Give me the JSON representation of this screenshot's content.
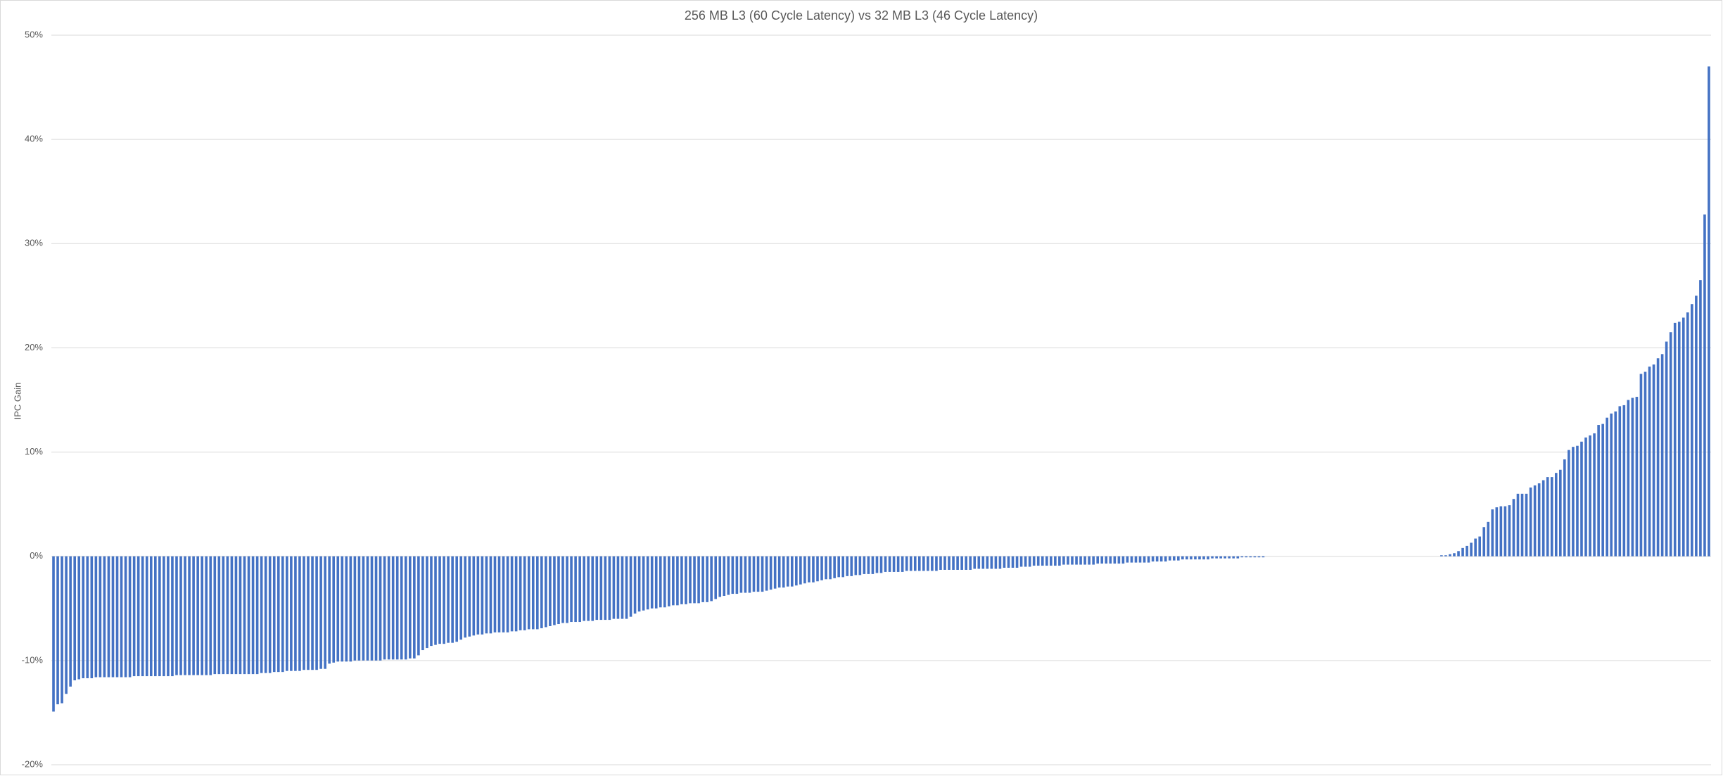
{
  "chart_data": {
    "type": "bar",
    "title": "256 MB L3 (60 Cycle Latency) vs 32 MB L3 (46 Cycle Latency)",
    "y_label": "IPC Gain",
    "color": "#4472c4",
    "grid": true,
    "ylim": [
      -20,
      50
    ],
    "yticks": [
      {
        "value": -20,
        "label": "-20%"
      },
      {
        "value": -10,
        "label": "-10%"
      },
      {
        "value": 0,
        "label": "0%"
      },
      {
        "value": 10,
        "label": "10%"
      },
      {
        "value": 20,
        "label": "20%"
      },
      {
        "value": 30,
        "label": "30%"
      },
      {
        "value": 40,
        "label": "40%"
      },
      {
        "value": 50,
        "label": "50%"
      }
    ],
    "values": [
      -14.9,
      -14.2,
      -14.1,
      -13.2,
      -12.5,
      -11.9,
      -11.8,
      -11.7,
      -11.7,
      -11.7,
      -11.6,
      -11.6,
      -11.6,
      -11.6,
      -11.6,
      -11.6,
      -11.6,
      -11.6,
      -11.6,
      -11.5,
      -11.5,
      -11.5,
      -11.5,
      -11.5,
      -11.5,
      -11.5,
      -11.5,
      -11.5,
      -11.5,
      -11.4,
      -11.4,
      -11.4,
      -11.4,
      -11.4,
      -11.4,
      -11.4,
      -11.4,
      -11.4,
      -11.3,
      -11.3,
      -11.3,
      -11.3,
      -11.3,
      -11.3,
      -11.3,
      -11.3,
      -11.3,
      -11.3,
      -11.3,
      -11.2,
      -11.2,
      -11.2,
      -11.1,
      -11.1,
      -11.1,
      -11.0,
      -11.0,
      -11.0,
      -11.0,
      -10.9,
      -10.9,
      -10.9,
      -10.9,
      -10.8,
      -10.8,
      -10.3,
      -10.2,
      -10.1,
      -10.1,
      -10.1,
      -10.1,
      -10.0,
      -10.0,
      -10.0,
      -10.0,
      -10.0,
      -10.0,
      -10.0,
      -9.9,
      -9.9,
      -9.9,
      -9.9,
      -9.9,
      -9.9,
      -9.8,
      -9.8,
      -9.5,
      -9.0,
      -8.8,
      -8.6,
      -8.5,
      -8.4,
      -8.4,
      -8.3,
      -8.3,
      -8.2,
      -8.0,
      -7.8,
      -7.7,
      -7.6,
      -7.5,
      -7.5,
      -7.4,
      -7.4,
      -7.3,
      -7.3,
      -7.3,
      -7.3,
      -7.2,
      -7.2,
      -7.1,
      -7.1,
      -7.0,
      -7.0,
      -7.0,
      -6.9,
      -6.8,
      -6.7,
      -6.6,
      -6.5,
      -6.4,
      -6.4,
      -6.3,
      -6.3,
      -6.3,
      -6.2,
      -6.2,
      -6.2,
      -6.1,
      -6.1,
      -6.1,
      -6.1,
      -6.0,
      -6.0,
      -6.0,
      -6.0,
      -5.8,
      -5.5,
      -5.3,
      -5.2,
      -5.1,
      -5.0,
      -5.0,
      -4.9,
      -4.9,
      -4.8,
      -4.7,
      -4.7,
      -4.6,
      -4.6,
      -4.5,
      -4.5,
      -4.5,
      -4.4,
      -4.4,
      -4.3,
      -4.1,
      -3.9,
      -3.8,
      -3.7,
      -3.6,
      -3.6,
      -3.5,
      -3.5,
      -3.5,
      -3.4,
      -3.4,
      -3.4,
      -3.3,
      -3.2,
      -3.1,
      -3.0,
      -3.0,
      -2.9,
      -2.9,
      -2.8,
      -2.7,
      -2.6,
      -2.5,
      -2.5,
      -2.4,
      -2.3,
      -2.2,
      -2.2,
      -2.1,
      -2.0,
      -2.0,
      -1.9,
      -1.9,
      -1.8,
      -1.8,
      -1.7,
      -1.7,
      -1.7,
      -1.6,
      -1.6,
      -1.5,
      -1.5,
      -1.5,
      -1.5,
      -1.5,
      -1.4,
      -1.4,
      -1.4,
      -1.4,
      -1.4,
      -1.4,
      -1.4,
      -1.4,
      -1.3,
      -1.3,
      -1.3,
      -1.3,
      -1.3,
      -1.3,
      -1.3,
      -1.3,
      -1.2,
      -1.2,
      -1.2,
      -1.2,
      -1.2,
      -1.2,
      -1.2,
      -1.1,
      -1.1,
      -1.1,
      -1.1,
      -1.0,
      -1.0,
      -1.0,
      -0.9,
      -0.9,
      -0.9,
      -0.9,
      -0.9,
      -0.9,
      -0.9,
      -0.8,
      -0.8,
      -0.8,
      -0.8,
      -0.8,
      -0.8,
      -0.8,
      -0.8,
      -0.7,
      -0.7,
      -0.7,
      -0.7,
      -0.7,
      -0.7,
      -0.7,
      -0.6,
      -0.6,
      -0.6,
      -0.6,
      -0.6,
      -0.6,
      -0.5,
      -0.5,
      -0.5,
      -0.5,
      -0.4,
      -0.4,
      -0.4,
      -0.3,
      -0.3,
      -0.3,
      -0.3,
      -0.3,
      -0.3,
      -0.3,
      -0.2,
      -0.2,
      -0.2,
      -0.2,
      -0.2,
      -0.2,
      -0.2,
      -0.1,
      -0.1,
      -0.1,
      -0.1,
      -0.1,
      -0.1,
      0,
      0,
      0,
      0,
      0,
      0,
      0,
      0,
      0,
      0,
      0,
      0,
      0,
      0,
      0,
      0,
      0,
      0,
      0,
      0,
      0,
      0,
      0,
      0,
      0,
      0,
      0,
      0,
      0,
      0,
      0,
      0,
      0,
      0,
      0,
      0,
      0,
      0,
      0,
      0,
      0,
      0.1,
      0.1,
      0.2,
      0.3,
      0.5,
      0.8,
      1.0,
      1.3,
      1.7,
      1.9,
      2.8,
      3.3,
      4.5,
      4.7,
      4.8,
      4.8,
      4.9,
      5.5,
      6.0,
      6.0,
      6.0,
      6.6,
      6.8,
      7.0,
      7.3,
      7.6,
      7.6,
      8.0,
      8.3,
      9.3,
      10.2,
      10.5,
      10.6,
      11.0,
      11.4,
      11.6,
      11.8,
      12.6,
      12.7,
      13.3,
      13.7,
      13.9,
      14.4,
      14.5,
      15.0,
      15.2,
      15.3,
      17.5,
      17.7,
      18.2,
      18.4,
      19.0,
      19.4,
      20.6,
      21.5,
      22.4,
      22.5,
      22.9,
      23.4,
      24.2,
      25.0,
      26.5,
      32.8,
      47.0
    ]
  }
}
